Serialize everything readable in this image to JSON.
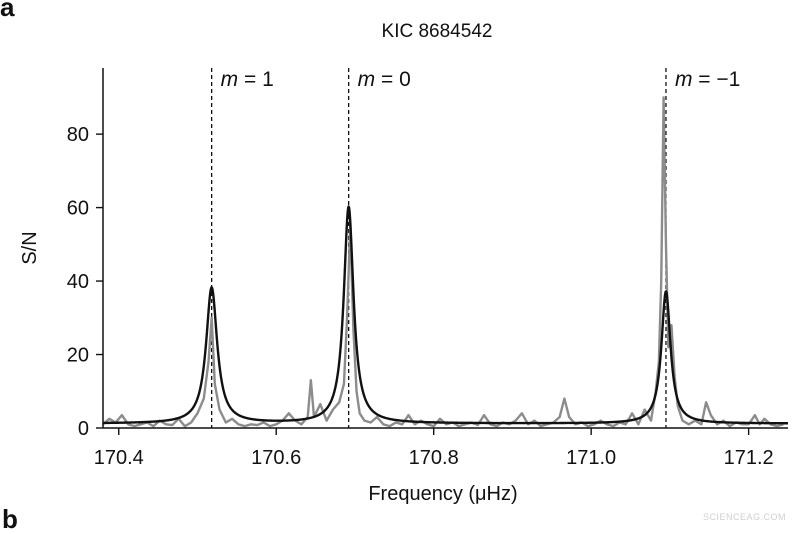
{
  "panel_labels": {
    "top": "a",
    "bottom": "b"
  },
  "watermark": "SCIENCEAG.COM",
  "chart_data": {
    "type": "line",
    "title": "KIC 8684542",
    "xlabel": "Frequency (μHz)",
    "ylabel": "S/N",
    "xlim": [
      170.38,
      171.25
    ],
    "ylim": [
      0,
      98
    ],
    "xticks": [
      170.4,
      170.6,
      170.8,
      171.0,
      171.2
    ],
    "xtick_labels": [
      "170.4",
      "170.6",
      "170.8",
      "171.0",
      "171.2"
    ],
    "yticks": [
      0,
      20,
      40,
      60,
      80
    ],
    "ytick_labels": [
      "0",
      "20",
      "40",
      "60",
      "80"
    ],
    "grid": false,
    "annotations": [
      {
        "x": 170.518,
        "label_italic": "m",
        "label_rest": " = 1"
      },
      {
        "x": 170.692,
        "label_italic": "m",
        "label_rest": " = 0"
      },
      {
        "x": 171.095,
        "label_italic": "m",
        "label_rest": " = −1"
      }
    ],
    "series": [
      {
        "color": "#8c8c8c",
        "x": [
          170.38,
          170.388,
          170.396,
          170.404,
          170.412,
          170.42,
          170.428,
          170.436,
          170.444,
          170.452,
          170.46,
          170.468,
          170.476,
          170.484,
          170.492,
          170.5,
          170.508,
          170.514,
          170.518,
          170.522,
          170.528,
          170.536,
          170.544,
          170.552,
          170.56,
          170.568,
          170.576,
          170.584,
          170.592,
          170.6,
          170.608,
          170.616,
          170.624,
          170.632,
          170.64,
          170.644,
          170.648,
          170.656,
          170.664,
          170.672,
          170.68,
          170.686,
          170.69,
          170.694,
          170.698,
          170.702,
          170.706,
          170.712,
          170.72,
          170.728,
          170.736,
          170.744,
          170.752,
          170.76,
          170.768,
          170.776,
          170.784,
          170.792,
          170.8,
          170.808,
          170.816,
          170.824,
          170.832,
          170.84,
          170.848,
          170.856,
          170.864,
          170.872,
          170.88,
          170.888,
          170.896,
          170.904,
          170.912,
          170.92,
          170.928,
          170.936,
          170.944,
          170.952,
          170.96,
          170.966,
          170.972,
          170.98,
          170.988,
          170.996,
          171.004,
          171.012,
          171.02,
          171.028,
          171.036,
          171.044,
          171.052,
          171.06,
          171.068,
          171.076,
          171.082,
          171.086,
          171.089,
          171.092,
          171.095,
          171.098,
          171.102,
          171.106,
          171.11,
          171.116,
          171.124,
          171.132,
          171.14,
          171.146,
          171.152,
          171.16,
          171.168,
          171.176,
          171.184,
          171.192,
          171.2,
          171.208,
          171.214,
          171.22,
          171.228,
          171.236,
          171.244
        ],
        "y": [
          1,
          2.5,
          1.5,
          3.5,
          1,
          0.5,
          1,
          1.5,
          0.5,
          2,
          1,
          0.8,
          2.5,
          0.5,
          1.5,
          4,
          8,
          18,
          30,
          12,
          5,
          1.5,
          2.5,
          1,
          0.5,
          1,
          0.8,
          1.5,
          0.5,
          1,
          2,
          4,
          2,
          1,
          3,
          13,
          3,
          6.5,
          2,
          5,
          7,
          12,
          30,
          55,
          27,
          10,
          4,
          2,
          1.5,
          3,
          1,
          0.5,
          1.5,
          1,
          3.5,
          1,
          2,
          1,
          0.5,
          2.5,
          1,
          1.5,
          0.5,
          1,
          1.5,
          0.8,
          3.5,
          1,
          0.5,
          1.5,
          1,
          2,
          4,
          1,
          2,
          0.5,
          1,
          1.5,
          3,
          8,
          3,
          1,
          1.5,
          0.5,
          1,
          2,
          1,
          0.5,
          1.5,
          1,
          4,
          1,
          5,
          2,
          10,
          18,
          40,
          90,
          50,
          22,
          28,
          14,
          6,
          2,
          1,
          2,
          1,
          7,
          3.5,
          1,
          2,
          0.5,
          1.5,
          1,
          1,
          3.5,
          1,
          2.5,
          1,
          0.5,
          1
        ]
      },
      {
        "color": "#111111",
        "peaks": [
          {
            "x0": 170.518,
            "height": 37,
            "hwhm": 0.0085
          },
          {
            "x0": 170.692,
            "height": 59,
            "hwhm": 0.0075
          },
          {
            "x0": 171.095,
            "height": 36,
            "hwhm": 0.007
          }
        ],
        "baseline": 1.2
      }
    ]
  }
}
